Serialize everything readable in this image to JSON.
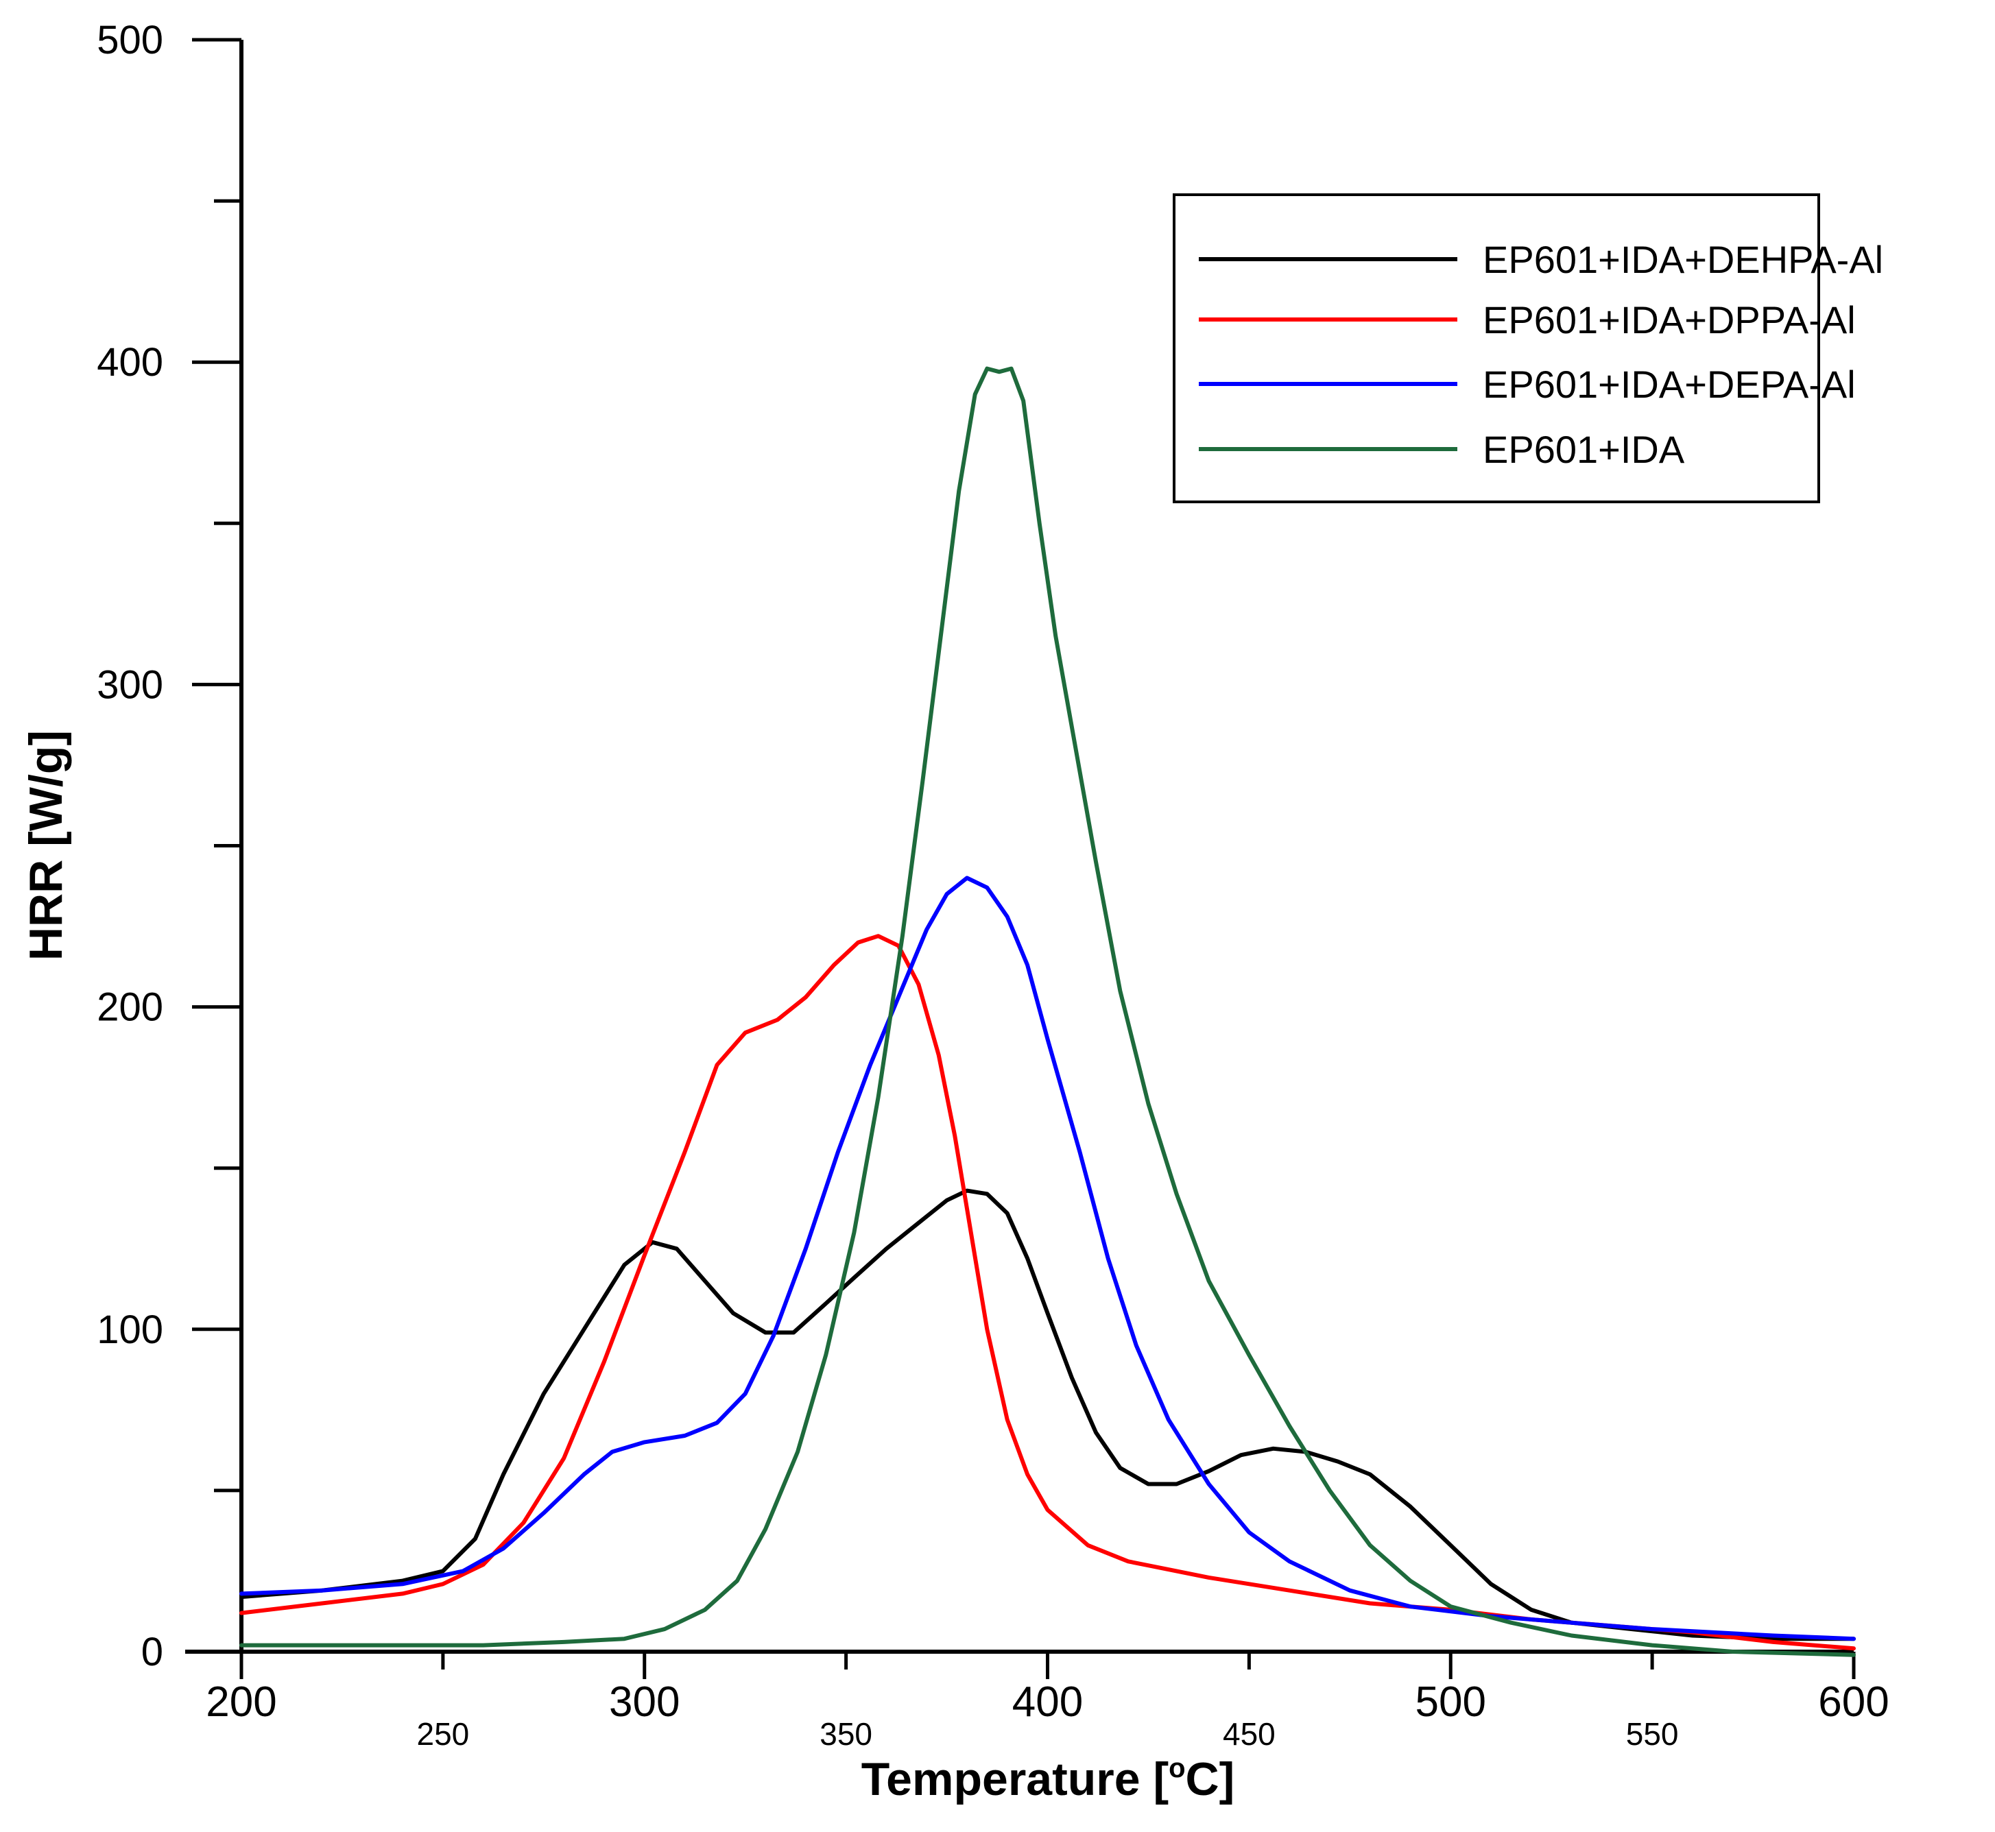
{
  "chart_data": {
    "type": "line",
    "xlabel": "Temperature [",
    "xlabel_sup": "o",
    "xlabel_unit": "C]",
    "ylabel": "HRR [W/g]",
    "xlim": [
      200,
      600
    ],
    "ylim": [
      0,
      500
    ],
    "x_major_ticks": [
      "200",
      "300",
      "400",
      "500",
      "600"
    ],
    "x_minor_ticks": [
      "250",
      "350",
      "450",
      "550"
    ],
    "y_ticks": [
      "0",
      "100",
      "200",
      "300",
      "400",
      "500"
    ],
    "legend_position": "top-right",
    "series": [
      {
        "name": "EP601+IDA+DEHPA-Al",
        "color": "#000000",
        "points": [
          [
            200,
            17
          ],
          [
            220,
            19
          ],
          [
            240,
            22
          ],
          [
            250,
            25
          ],
          [
            258,
            35
          ],
          [
            265,
            55
          ],
          [
            275,
            80
          ],
          [
            285,
            100
          ],
          [
            295,
            120
          ],
          [
            302,
            127
          ],
          [
            308,
            125
          ],
          [
            315,
            115
          ],
          [
            322,
            105
          ],
          [
            330,
            99
          ],
          [
            337,
            99
          ],
          [
            345,
            108
          ],
          [
            352,
            116
          ],
          [
            360,
            125
          ],
          [
            368,
            133
          ],
          [
            375,
            140
          ],
          [
            380,
            143
          ],
          [
            385,
            142
          ],
          [
            390,
            136
          ],
          [
            395,
            122
          ],
          [
            400,
            105
          ],
          [
            406,
            85
          ],
          [
            412,
            68
          ],
          [
            418,
            57
          ],
          [
            425,
            52
          ],
          [
            432,
            52
          ],
          [
            440,
            56
          ],
          [
            448,
            61
          ],
          [
            456,
            63
          ],
          [
            464,
            62
          ],
          [
            472,
            59
          ],
          [
            480,
            55
          ],
          [
            490,
            45
          ],
          [
            500,
            33
          ],
          [
            510,
            21
          ],
          [
            520,
            13
          ],
          [
            530,
            9
          ],
          [
            545,
            7
          ],
          [
            560,
            5
          ],
          [
            580,
            4
          ],
          [
            600,
            4
          ]
        ]
      },
      {
        "name": "EP601+IDA+DPPA-Al",
        "color": "#ff0000",
        "points": [
          [
            200,
            12
          ],
          [
            220,
            15
          ],
          [
            240,
            18
          ],
          [
            250,
            21
          ],
          [
            260,
            27
          ],
          [
            270,
            40
          ],
          [
            280,
            60
          ],
          [
            290,
            90
          ],
          [
            300,
            123
          ],
          [
            310,
            155
          ],
          [
            318,
            182
          ],
          [
            325,
            192
          ],
          [
            333,
            196
          ],
          [
            340,
            203
          ],
          [
            347,
            213
          ],
          [
            353,
            220
          ],
          [
            358,
            222
          ],
          [
            363,
            219
          ],
          [
            368,
            207
          ],
          [
            373,
            185
          ],
          [
            377,
            160
          ],
          [
            381,
            130
          ],
          [
            385,
            100
          ],
          [
            390,
            72
          ],
          [
            395,
            55
          ],
          [
            400,
            44
          ],
          [
            410,
            33
          ],
          [
            420,
            28
          ],
          [
            440,
            23
          ],
          [
            460,
            19
          ],
          [
            480,
            15
          ],
          [
            500,
            13
          ],
          [
            520,
            10
          ],
          [
            540,
            8
          ],
          [
            560,
            6
          ],
          [
            580,
            3
          ],
          [
            600,
            1
          ]
        ]
      },
      {
        "name": "EP601+IDA+DEPA-Al",
        "color": "#0000ff",
        "points": [
          [
            200,
            18
          ],
          [
            220,
            19
          ],
          [
            240,
            21
          ],
          [
            255,
            25
          ],
          [
            265,
            32
          ],
          [
            275,
            43
          ],
          [
            285,
            55
          ],
          [
            292,
            62
          ],
          [
            300,
            65
          ],
          [
            310,
            67
          ],
          [
            318,
            71
          ],
          [
            325,
            80
          ],
          [
            332,
            98
          ],
          [
            340,
            125
          ],
          [
            348,
            155
          ],
          [
            356,
            182
          ],
          [
            364,
            206
          ],
          [
            370,
            224
          ],
          [
            375,
            235
          ],
          [
            380,
            240
          ],
          [
            385,
            237
          ],
          [
            390,
            228
          ],
          [
            395,
            213
          ],
          [
            400,
            190
          ],
          [
            408,
            155
          ],
          [
            415,
            122
          ],
          [
            422,
            95
          ],
          [
            430,
            72
          ],
          [
            440,
            52
          ],
          [
            450,
            37
          ],
          [
            460,
            28
          ],
          [
            475,
            19
          ],
          [
            490,
            14
          ],
          [
            510,
            11
          ],
          [
            530,
            9
          ],
          [
            550,
            7
          ],
          [
            580,
            5
          ],
          [
            600,
            4
          ]
        ]
      },
      {
        "name": "EP601+IDA",
        "color": "#1e6b3c",
        "points": [
          [
            200,
            2
          ],
          [
            230,
            2
          ],
          [
            260,
            2
          ],
          [
            280,
            3
          ],
          [
            295,
            4
          ],
          [
            305,
            7
          ],
          [
            315,
            13
          ],
          [
            323,
            22
          ],
          [
            330,
            38
          ],
          [
            338,
            62
          ],
          [
            345,
            92
          ],
          [
            352,
            130
          ],
          [
            358,
            172
          ],
          [
            364,
            222
          ],
          [
            369,
            270
          ],
          [
            374,
            320
          ],
          [
            378,
            360
          ],
          [
            382,
            390
          ],
          [
            385,
            398
          ],
          [
            388,
            397
          ],
          [
            391,
            398
          ],
          [
            394,
            388
          ],
          [
            398,
            350
          ],
          [
            402,
            315
          ],
          [
            407,
            280
          ],
          [
            412,
            245
          ],
          [
            418,
            205
          ],
          [
            425,
            170
          ],
          [
            432,
            142
          ],
          [
            440,
            115
          ],
          [
            450,
            92
          ],
          [
            460,
            70
          ],
          [
            470,
            50
          ],
          [
            480,
            33
          ],
          [
            490,
            22
          ],
          [
            500,
            14
          ],
          [
            515,
            9
          ],
          [
            530,
            5
          ],
          [
            550,
            2
          ],
          [
            570,
            0
          ],
          [
            600,
            -1
          ]
        ]
      }
    ]
  }
}
